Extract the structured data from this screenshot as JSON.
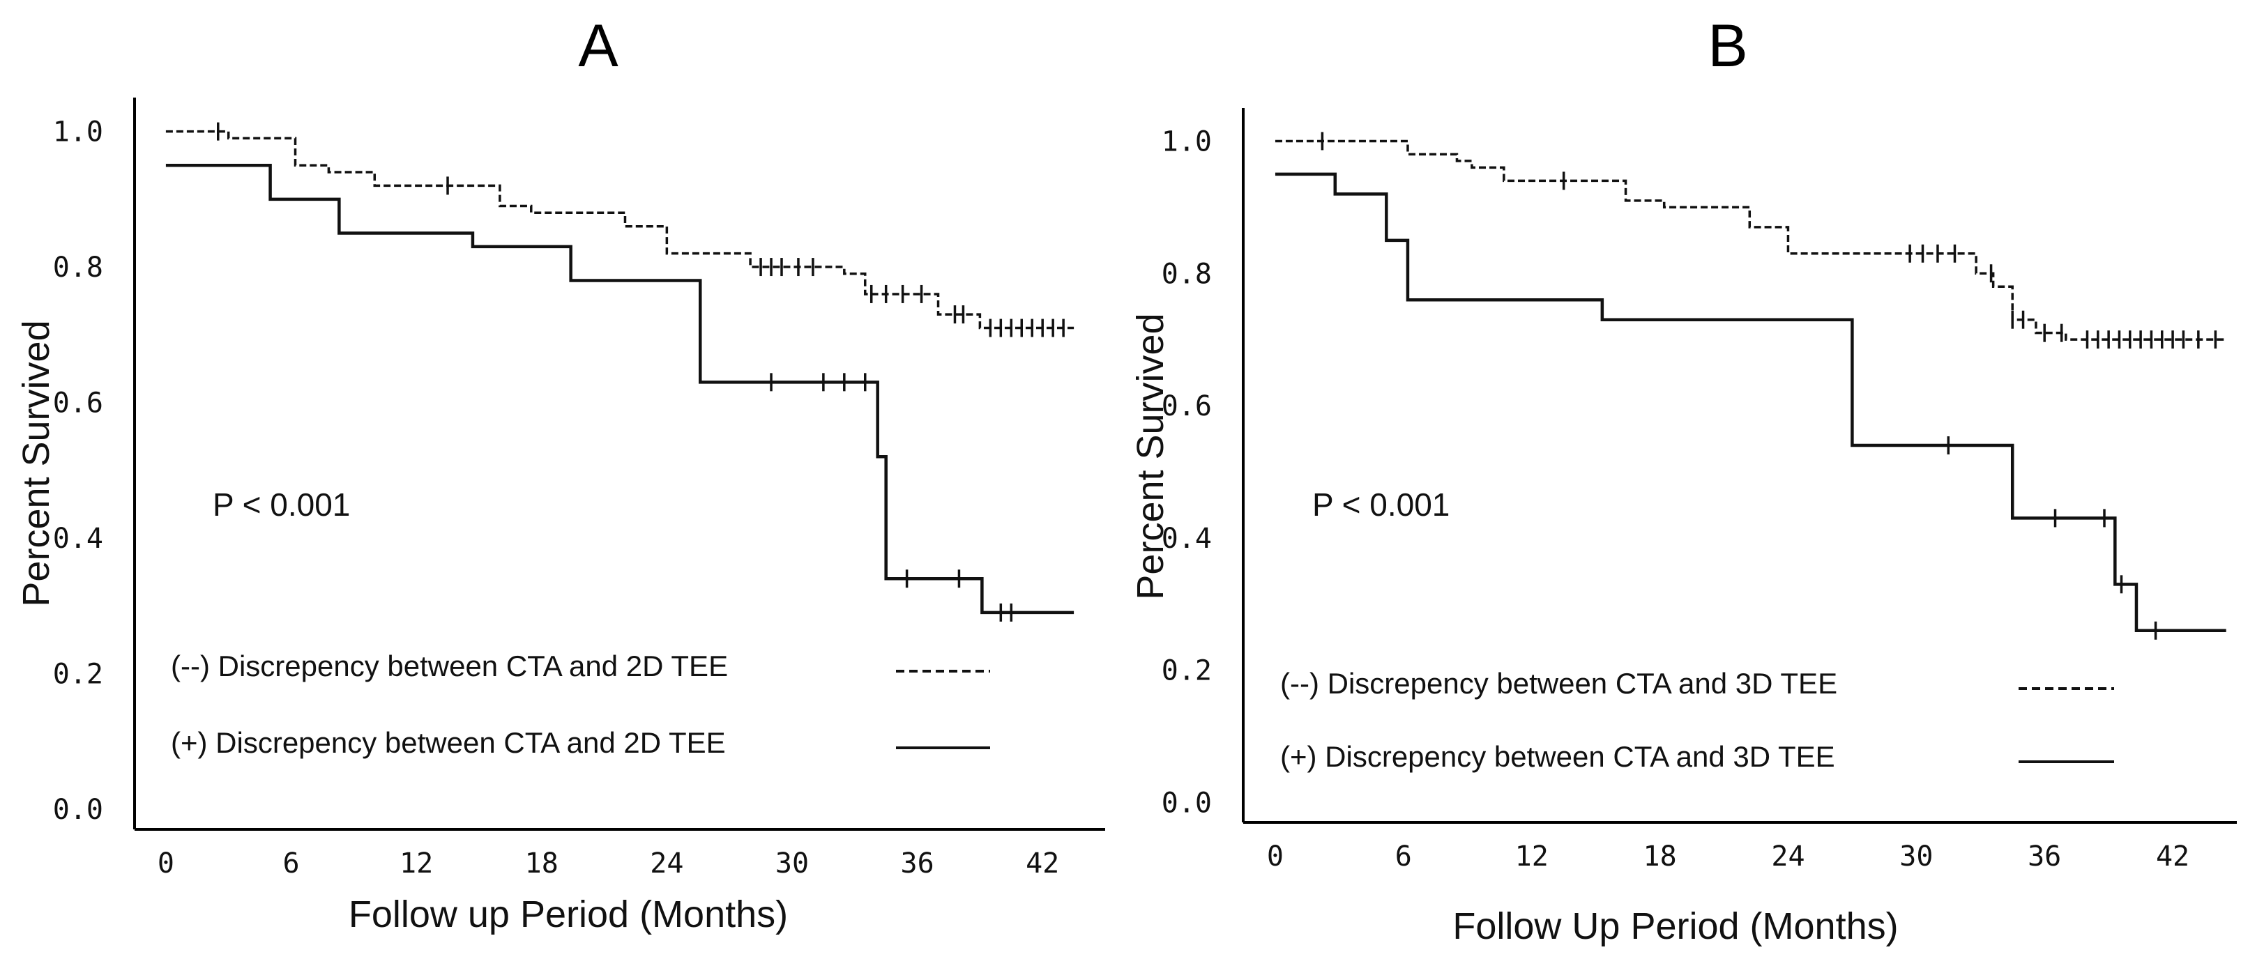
{
  "chart_data": [
    {
      "type": "line",
      "panel": "A",
      "title": "A",
      "xlabel": "Follow up Period (Months)",
      "ylabel": "Percent Survived",
      "xlim": [
        -1.5,
        45
      ],
      "ylim": [
        -0.03,
        1.05
      ],
      "x_ticks": [
        0,
        6,
        12,
        18,
        24,
        30,
        36,
        42
      ],
      "x_tick_labels": [
        "0",
        "6",
        "12",
        "18",
        "24",
        "30",
        "36",
        "42"
      ],
      "y_ticks": [
        0.0,
        0.2,
        0.4,
        0.6,
        0.8,
        1.0
      ],
      "y_tick_labels": [
        "0.0",
        "0.2",
        "0.4",
        "0.6",
        "0.8",
        "1.0"
      ],
      "annotation": "P < 0.001",
      "grid": false,
      "legend_position": "lower-left",
      "series": [
        {
          "name": "(--) Discrepency between CTA and 2D TEE",
          "style": "dashed",
          "end_x": 43.5,
          "steps": [
            [
              0,
              1.0
            ],
            [
              3,
              0.99
            ],
            [
              6.2,
              0.95
            ],
            [
              7.8,
              0.94
            ],
            [
              10,
              0.92
            ],
            [
              16,
              0.89
            ],
            [
              17.5,
              0.88
            ],
            [
              22,
              0.86
            ],
            [
              24,
              0.82
            ],
            [
              28,
              0.8
            ],
            [
              32.5,
              0.79
            ],
            [
              33.5,
              0.76
            ],
            [
              37,
              0.73
            ],
            [
              39,
              0.71
            ]
          ],
          "censor_x": [
            2.5,
            13.5,
            28.5,
            29,
            29.5,
            30.3,
            31,
            33.8,
            34.5,
            35.3,
            36.2,
            37.8,
            38.2,
            39.5,
            40,
            40.5,
            41,
            41.5,
            42,
            42.5,
            43
          ]
        },
        {
          "name": "(+) Discrepency between CTA and 2D TEE",
          "style": "solid",
          "end_x": 43.5,
          "steps": [
            [
              0,
              0.95
            ],
            [
              5,
              0.9
            ],
            [
              8.3,
              0.85
            ],
            [
              14.7,
              0.83
            ],
            [
              19.4,
              0.78
            ],
            [
              25.6,
              0.63
            ],
            [
              34.1,
              0.52
            ],
            [
              34.5,
              0.34
            ],
            [
              39.1,
              0.29
            ]
          ],
          "censor_x": [
            29,
            31.5,
            32.5,
            33.5,
            35.5,
            38,
            40,
            40.5
          ]
        }
      ]
    },
    {
      "type": "line",
      "panel": "B",
      "title": "B",
      "xlabel": "Follow Up Period (Months)",
      "ylabel": "Percent Survived",
      "xlim": [
        -1.5,
        45
      ],
      "ylim": [
        -0.03,
        1.05
      ],
      "x_ticks": [
        0,
        6,
        12,
        18,
        24,
        30,
        36,
        42
      ],
      "x_tick_labels": [
        "0",
        "6",
        "12",
        "18",
        "24",
        "30",
        "36",
        "42"
      ],
      "y_ticks": [
        0.0,
        0.2,
        0.4,
        0.6,
        0.8,
        1.0
      ],
      "y_tick_labels": [
        "0.0",
        "0.2",
        "0.4",
        "0.6",
        "0.8",
        "1.0"
      ],
      "annotation": "P < 0.001",
      "grid": false,
      "legend_position": "lower-left",
      "series": [
        {
          "name": "(--) Discrepency between CTA and 3D TEE",
          "style": "dashed",
          "end_x": 44.5,
          "steps": [
            [
              0,
              1.0
            ],
            [
              6.2,
              0.98
            ],
            [
              8.5,
              0.97
            ],
            [
              9.2,
              0.96
            ],
            [
              10.7,
              0.94
            ],
            [
              16.4,
              0.91
            ],
            [
              18.2,
              0.9
            ],
            [
              22.2,
              0.87
            ],
            [
              24,
              0.83
            ],
            [
              32.8,
              0.8
            ],
            [
              33.6,
              0.78
            ],
            [
              34.5,
              0.73
            ],
            [
              35.6,
              0.71
            ],
            [
              37,
              0.7
            ]
          ],
          "censor_x": [
            2.2,
            13.5,
            29.7,
            30.3,
            31,
            31.8,
            33.5,
            34.5,
            35,
            36,
            36.8,
            38,
            38.5,
            39,
            39.5,
            40,
            40.5,
            41,
            41.5,
            42,
            42.5,
            43.2,
            44
          ]
        },
        {
          "name": "(+) Discrepency between CTA and 3D TEE",
          "style": "solid",
          "end_x": 44.5,
          "steps": [
            [
              0,
              0.95
            ],
            [
              2.8,
              0.92
            ],
            [
              5.2,
              0.85
            ],
            [
              6.2,
              0.76
            ],
            [
              15.3,
              0.73
            ],
            [
              27,
              0.54
            ],
            [
              34.5,
              0.43
            ],
            [
              39.3,
              0.33
            ],
            [
              40.3,
              0.26
            ]
          ],
          "censor_x": [
            31.5,
            36.5,
            38.8,
            39.6,
            41.2
          ]
        }
      ]
    }
  ]
}
